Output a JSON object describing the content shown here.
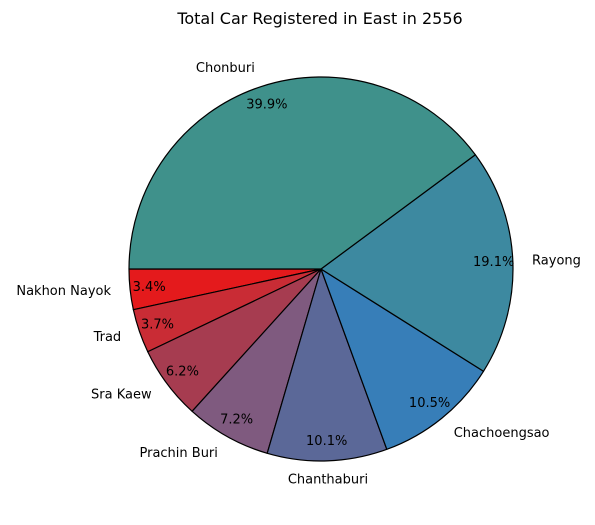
{
  "chart_data": {
    "type": "pie",
    "title": "Total Car Registered in East in 2556",
    "start_angle_deg": 180,
    "direction": "counterclockwise",
    "edge_color": "#000000",
    "slices": [
      {
        "label": "Nakhon Nayok",
        "value": 3.4,
        "pct_label": "3.4%",
        "color": "#e41a1c"
      },
      {
        "label": "Trad",
        "value": 3.7,
        "pct_label": "3.7%",
        "color": "#c92c35"
      },
      {
        "label": "Sra Kaew",
        "value": 6.2,
        "pct_label": "6.2%",
        "color": "#a63c50"
      },
      {
        "label": "Prachin Buri",
        "value": 7.2,
        "pct_label": "7.2%",
        "color": "#7f5a7f"
      },
      {
        "label": "Chanthaburi",
        "value": 10.1,
        "pct_label": "10.1%",
        "color": "#5b6898"
      },
      {
        "label": "Chachoengsao",
        "value": 10.5,
        "pct_label": "10.5%",
        "color": "#377eb8"
      },
      {
        "label": "Rayong",
        "value": 19.1,
        "pct_label": "19.1%",
        "color": "#3d89a0"
      },
      {
        "label": "Chonburi",
        "value": 39.9,
        "pct_label": "39.9%",
        "color": "#3f918b"
      }
    ]
  }
}
